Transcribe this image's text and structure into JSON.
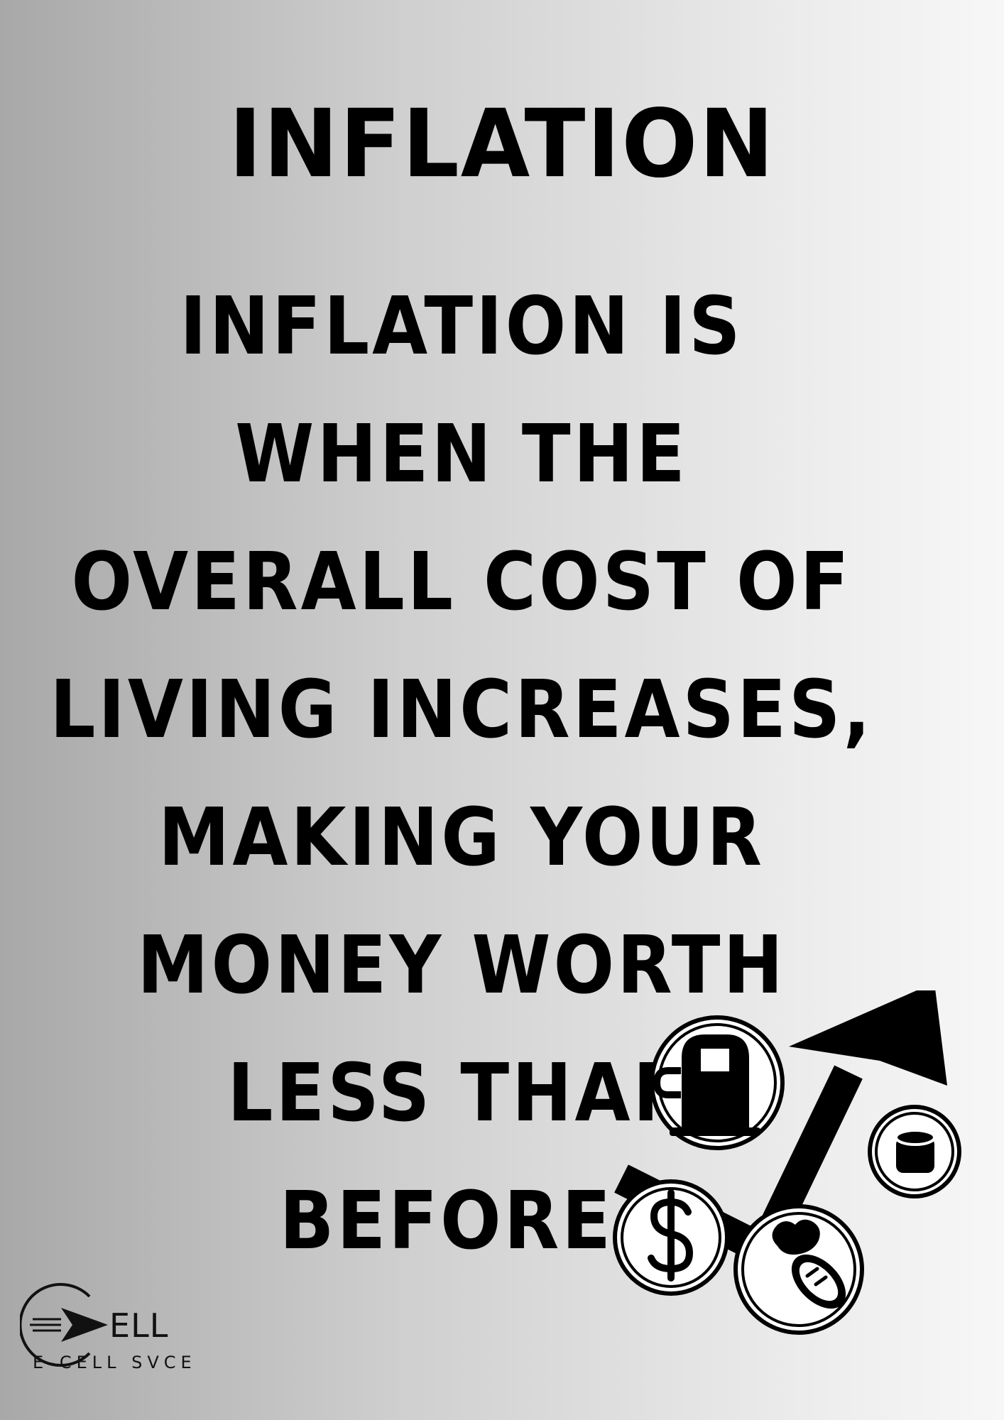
{
  "heading": "INFLATION",
  "lines": [
    "INFLATION IS",
    "WHEN THE",
    "OVERALL COST OF",
    "LIVING INCREASES,",
    "MAKING YOUR",
    "MONEY WORTH",
    "LESS THAN",
    "BEFORE."
  ],
  "illustration": {
    "icons": [
      "fuel-pump-icon",
      "coin-stack-icon",
      "dollar-icon",
      "food-icon",
      "rising-arrow-icon"
    ]
  },
  "logo": {
    "wordmark": "ELL",
    "caption": "E-CELL SVCE"
  }
}
